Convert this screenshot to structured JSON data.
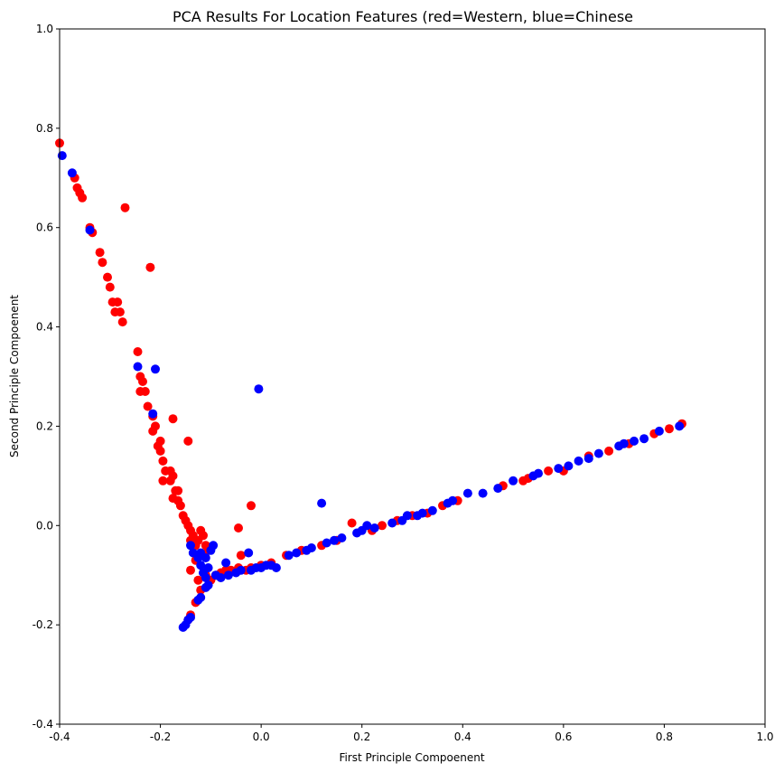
{
  "chart_data": {
    "type": "scatter",
    "title": "PCA Results For Location Features (red=Western, blue=Chinese",
    "xlabel": "First Principle Compoenent",
    "ylabel": "Second Principle Compoenent",
    "xlim": [
      -0.4,
      1.0
    ],
    "ylim": [
      -0.4,
      1.0
    ],
    "xticks": [
      "-0.4",
      "-0.2",
      "0.0",
      "0.2",
      "0.4",
      "0.6",
      "0.8",
      "1.0"
    ],
    "yticks": [
      "-0.4",
      "-0.2",
      "0.0",
      "0.2",
      "0.4",
      "0.6",
      "0.8",
      "1.0"
    ],
    "grid": false,
    "series": [
      {
        "color": "#ff0000",
        "points": [
          [
            -0.4,
            0.77
          ],
          [
            -0.37,
            0.7
          ],
          [
            -0.365,
            0.68
          ],
          [
            -0.36,
            0.67
          ],
          [
            -0.355,
            0.66
          ],
          [
            -0.34,
            0.6
          ],
          [
            -0.335,
            0.59
          ],
          [
            -0.32,
            0.55
          ],
          [
            -0.315,
            0.53
          ],
          [
            -0.305,
            0.5
          ],
          [
            -0.3,
            0.48
          ],
          [
            -0.295,
            0.45
          ],
          [
            -0.285,
            0.45
          ],
          [
            -0.29,
            0.43
          ],
          [
            -0.28,
            0.43
          ],
          [
            -0.275,
            0.41
          ],
          [
            -0.27,
            0.64
          ],
          [
            -0.22,
            0.52
          ],
          [
            -0.245,
            0.35
          ],
          [
            -0.24,
            0.3
          ],
          [
            -0.235,
            0.29
          ],
          [
            -0.24,
            0.27
          ],
          [
            -0.23,
            0.27
          ],
          [
            -0.225,
            0.24
          ],
          [
            -0.215,
            0.22
          ],
          [
            -0.21,
            0.2
          ],
          [
            -0.215,
            0.19
          ],
          [
            -0.2,
            0.17
          ],
          [
            -0.205,
            0.16
          ],
          [
            -0.2,
            0.15
          ],
          [
            -0.195,
            0.13
          ],
          [
            -0.19,
            0.11
          ],
          [
            -0.18,
            0.11
          ],
          [
            -0.195,
            0.09
          ],
          [
            -0.175,
            0.1
          ],
          [
            -0.18,
            0.09
          ],
          [
            -0.17,
            0.07
          ],
          [
            -0.165,
            0.07
          ],
          [
            -0.175,
            0.055
          ],
          [
            -0.165,
            0.05
          ],
          [
            -0.16,
            0.04
          ],
          [
            -0.175,
            0.215
          ],
          [
            -0.145,
            0.17
          ],
          [
            -0.155,
            0.02
          ],
          [
            -0.15,
            0.01
          ],
          [
            -0.145,
            0.0
          ],
          [
            -0.14,
            -0.01
          ],
          [
            -0.135,
            -0.02
          ],
          [
            -0.14,
            -0.03
          ],
          [
            -0.13,
            -0.04
          ],
          [
            -0.125,
            -0.03
          ],
          [
            -0.12,
            -0.01
          ],
          [
            -0.115,
            -0.02
          ],
          [
            -0.11,
            -0.04
          ],
          [
            -0.105,
            -0.05
          ],
          [
            -0.14,
            -0.09
          ],
          [
            -0.13,
            -0.07
          ],
          [
            -0.125,
            -0.11
          ],
          [
            -0.12,
            -0.13
          ],
          [
            -0.13,
            -0.155
          ],
          [
            -0.14,
            -0.18
          ],
          [
            -0.145,
            -0.19
          ],
          [
            -0.11,
            -0.1
          ],
          [
            -0.1,
            -0.11
          ],
          [
            -0.09,
            -0.1
          ],
          [
            -0.08,
            -0.095
          ],
          [
            -0.07,
            -0.09
          ],
          [
            -0.06,
            -0.09
          ],
          [
            -0.045,
            -0.085
          ],
          [
            -0.04,
            -0.06
          ],
          [
            -0.045,
            -0.005
          ],
          [
            -0.02,
            0.04
          ],
          [
            -0.03,
            -0.09
          ],
          [
            -0.02,
            -0.085
          ],
          [
            0.0,
            -0.08
          ],
          [
            0.02,
            -0.075
          ],
          [
            0.05,
            -0.06
          ],
          [
            0.08,
            -0.05
          ],
          [
            0.12,
            -0.04
          ],
          [
            0.15,
            -0.03
          ],
          [
            0.18,
            0.005
          ],
          [
            0.22,
            -0.01
          ],
          [
            0.24,
            0.0
          ],
          [
            0.27,
            0.01
          ],
          [
            0.3,
            0.02
          ],
          [
            0.33,
            0.025
          ],
          [
            0.36,
            0.04
          ],
          [
            0.39,
            0.05
          ],
          [
            0.48,
            0.08
          ],
          [
            0.52,
            0.09
          ],
          [
            0.53,
            0.095
          ],
          [
            0.57,
            0.11
          ],
          [
            0.6,
            0.11
          ],
          [
            0.65,
            0.14
          ],
          [
            0.69,
            0.15
          ],
          [
            0.73,
            0.165
          ],
          [
            0.78,
            0.185
          ],
          [
            0.81,
            0.195
          ],
          [
            0.835,
            0.205
          ]
        ]
      },
      {
        "color": "#0000ff",
        "points": [
          [
            -0.395,
            0.745
          ],
          [
            -0.375,
            0.71
          ],
          [
            -0.34,
            0.595
          ],
          [
            -0.245,
            0.32
          ],
          [
            -0.21,
            0.315
          ],
          [
            -0.215,
            0.225
          ],
          [
            -0.005,
            0.275
          ],
          [
            0.12,
            0.045
          ],
          [
            -0.14,
            -0.04
          ],
          [
            -0.135,
            -0.055
          ],
          [
            -0.125,
            -0.065
          ],
          [
            -0.12,
            -0.08
          ],
          [
            -0.115,
            -0.095
          ],
          [
            -0.11,
            -0.105
          ],
          [
            -0.105,
            -0.12
          ],
          [
            -0.11,
            -0.125
          ],
          [
            -0.12,
            -0.145
          ],
          [
            -0.125,
            -0.15
          ],
          [
            -0.14,
            -0.185
          ],
          [
            -0.145,
            -0.19
          ],
          [
            -0.15,
            -0.2
          ],
          [
            -0.155,
            -0.205
          ],
          [
            -0.12,
            -0.055
          ],
          [
            -0.11,
            -0.065
          ],
          [
            -0.1,
            -0.05
          ],
          [
            -0.095,
            -0.04
          ],
          [
            -0.105,
            -0.085
          ],
          [
            -0.09,
            -0.1
          ],
          [
            -0.08,
            -0.105
          ],
          [
            -0.07,
            -0.075
          ],
          [
            -0.065,
            -0.1
          ],
          [
            -0.05,
            -0.095
          ],
          [
            -0.04,
            -0.09
          ],
          [
            -0.025,
            -0.055
          ],
          [
            -0.02,
            -0.09
          ],
          [
            -0.01,
            -0.085
          ],
          [
            0.0,
            -0.085
          ],
          [
            0.01,
            -0.08
          ],
          [
            0.02,
            -0.08
          ],
          [
            0.03,
            -0.085
          ],
          [
            0.055,
            -0.06
          ],
          [
            0.07,
            -0.055
          ],
          [
            0.09,
            -0.05
          ],
          [
            0.1,
            -0.045
          ],
          [
            0.13,
            -0.035
          ],
          [
            0.145,
            -0.03
          ],
          [
            0.16,
            -0.025
          ],
          [
            0.19,
            -0.015
          ],
          [
            0.2,
            -0.01
          ],
          [
            0.21,
            0.0
          ],
          [
            0.225,
            -0.005
          ],
          [
            0.26,
            0.005
          ],
          [
            0.28,
            0.01
          ],
          [
            0.29,
            0.02
          ],
          [
            0.31,
            0.02
          ],
          [
            0.32,
            0.025
          ],
          [
            0.34,
            0.03
          ],
          [
            0.37,
            0.045
          ],
          [
            0.38,
            0.05
          ],
          [
            0.41,
            0.065
          ],
          [
            0.44,
            0.065
          ],
          [
            0.47,
            0.075
          ],
          [
            0.5,
            0.09
          ],
          [
            0.54,
            0.1
          ],
          [
            0.55,
            0.105
          ],
          [
            0.59,
            0.115
          ],
          [
            0.61,
            0.12
          ],
          [
            0.63,
            0.13
          ],
          [
            0.65,
            0.135
          ],
          [
            0.67,
            0.145
          ],
          [
            0.71,
            0.16
          ],
          [
            0.72,
            0.165
          ],
          [
            0.74,
            0.17
          ],
          [
            0.76,
            0.175
          ],
          [
            0.79,
            0.19
          ],
          [
            0.83,
            0.2
          ]
        ]
      }
    ]
  }
}
